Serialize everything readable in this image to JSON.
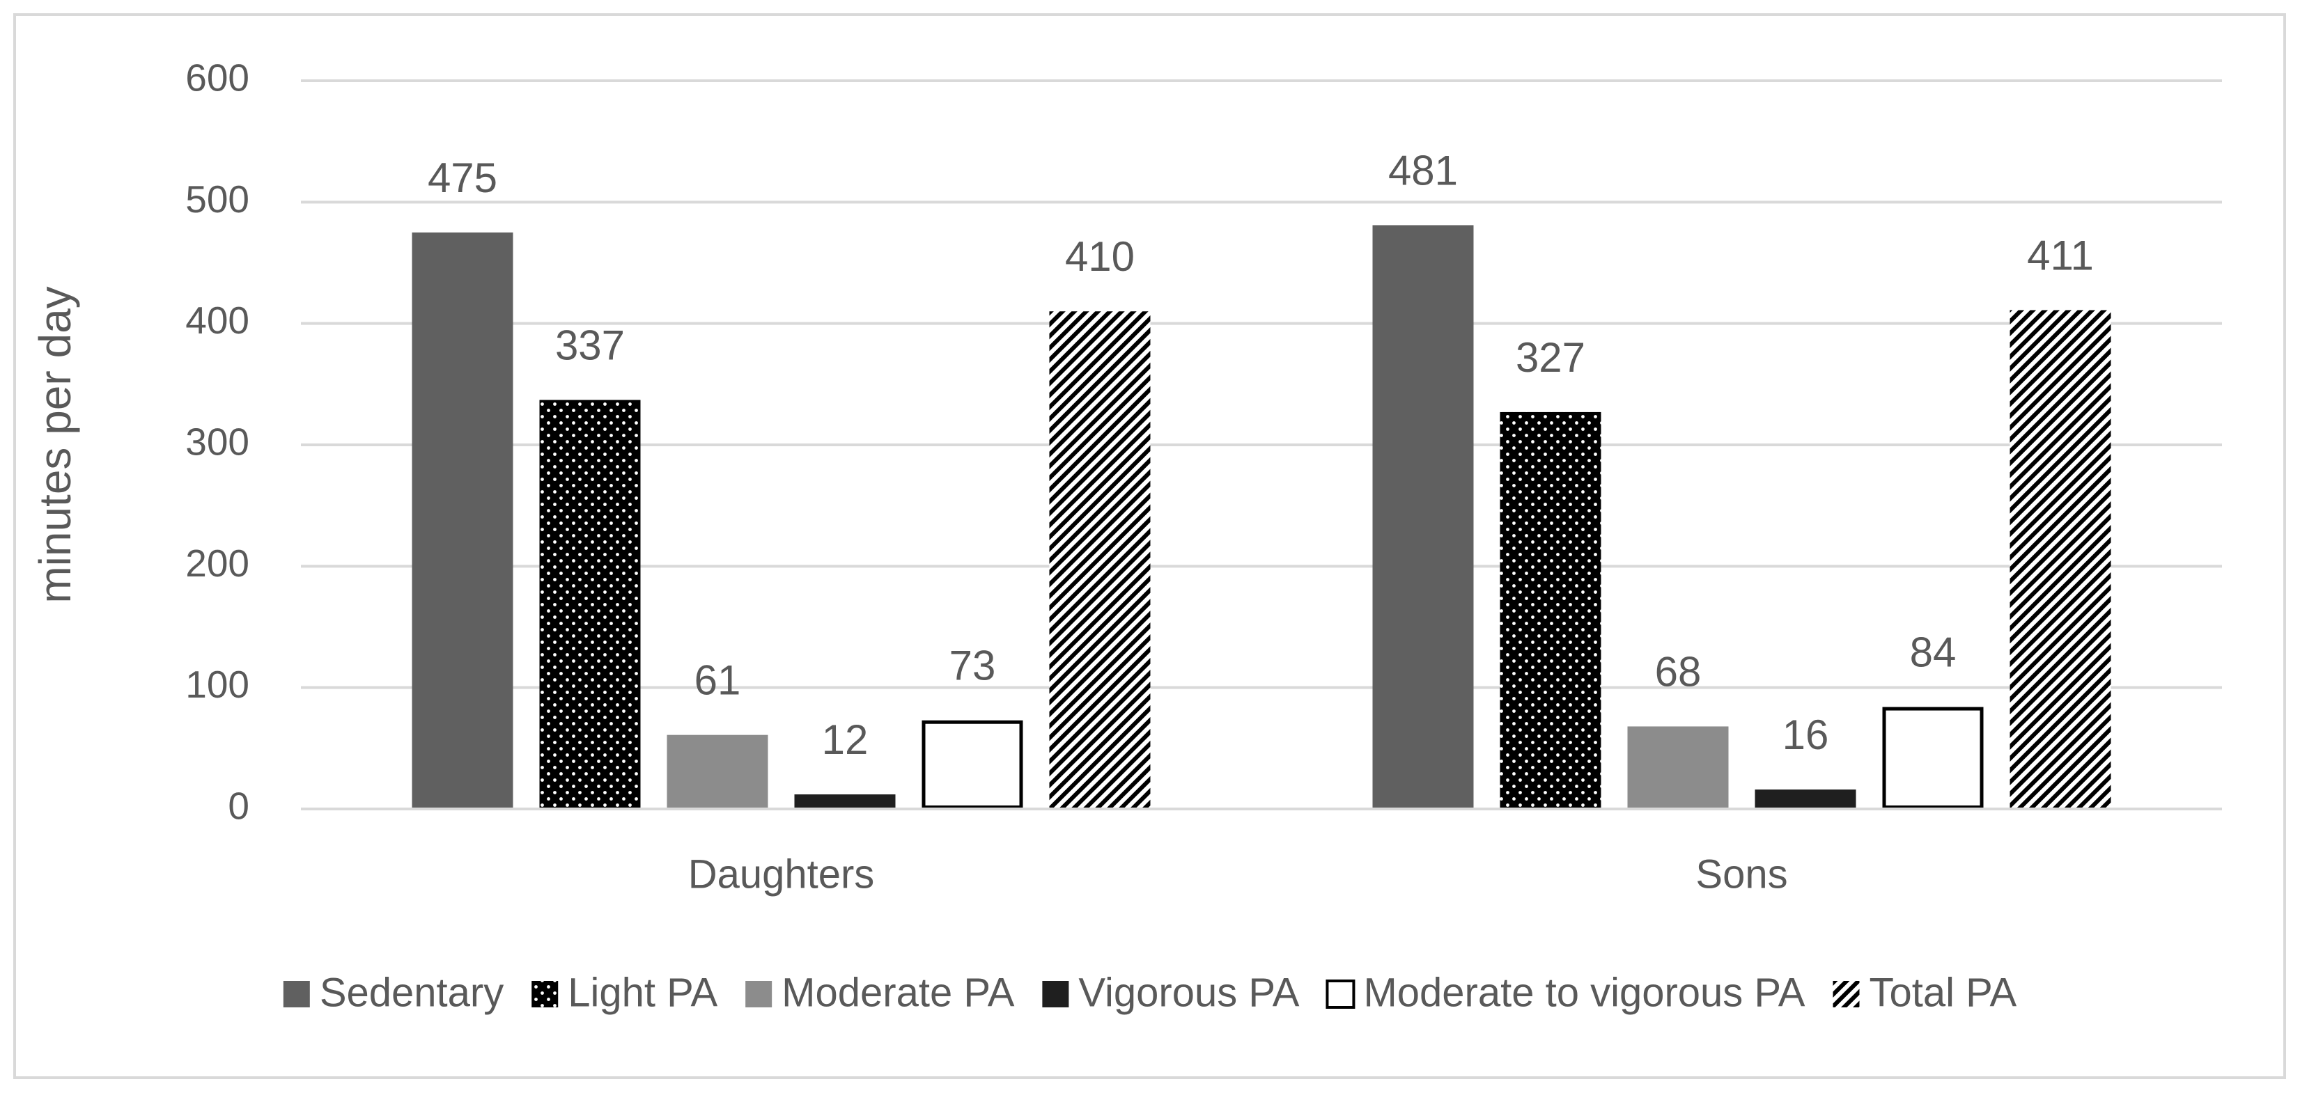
{
  "chart_data": {
    "type": "bar",
    "y_label": "minutes per day",
    "categories": [
      "Daughters",
      "Sons"
    ],
    "series": [
      {
        "name": "Sedentary",
        "color": "#606060",
        "pattern": "solid",
        "values": [
          475,
          481
        ]
      },
      {
        "name": "Light PA",
        "color": "#000000",
        "pattern": "dots",
        "values": [
          337,
          327
        ]
      },
      {
        "name": "Moderate PA",
        "color": "#8c8c8c",
        "pattern": "solid",
        "values": [
          61,
          68
        ]
      },
      {
        "name": "Vigorous PA",
        "color": "#1f1f1f",
        "pattern": "solid",
        "values": [
          12,
          16
        ]
      },
      {
        "name": "Moderate to vigorous PA",
        "color": "#000000",
        "pattern": "outline",
        "values": [
          73,
          84
        ]
      },
      {
        "name": "Total PA",
        "color": "#000000",
        "pattern": "hatch",
        "values": [
          410,
          411
        ]
      }
    ],
    "ylim": [
      0,
      600
    ],
    "yticks": [
      0,
      100,
      200,
      300,
      400,
      500,
      600
    ],
    "grid": true,
    "legend": "bottom"
  }
}
